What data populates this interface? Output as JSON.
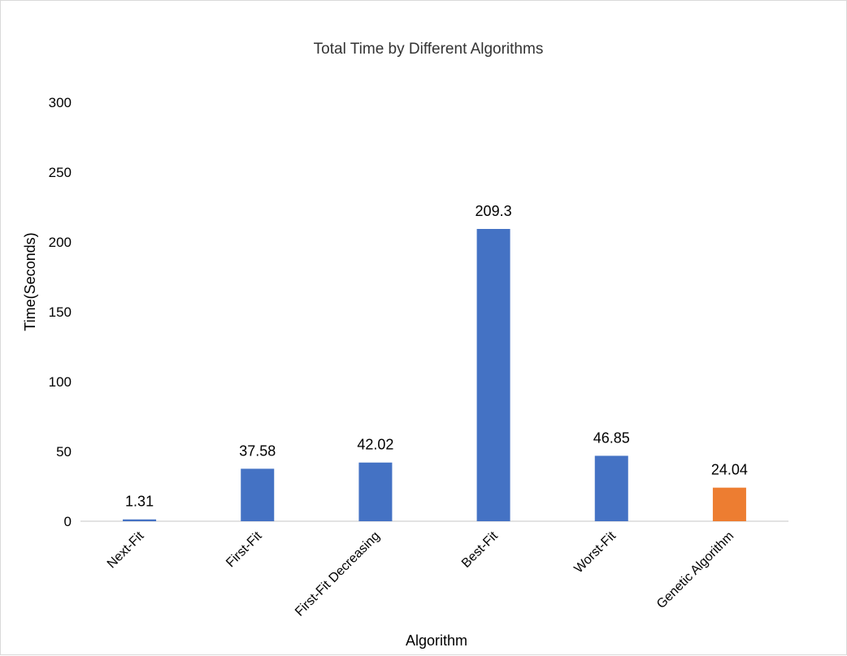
{
  "chart_data": {
    "type": "bar",
    "title": "Total Time by Different Algorithms",
    "xlabel": "Algorithm",
    "ylabel": "Time(Seconds)",
    "categories": [
      "Next-Fit",
      "First-Fit",
      "First-Fit Decreasing",
      "Best-Fit",
      "Worst-Fit",
      "Genetic Algorithm"
    ],
    "values": [
      1.31,
      37.58,
      42.02,
      209.3,
      46.85,
      24.04
    ],
    "data_labels": [
      "1.31",
      "37.58",
      "42.02",
      "209.3",
      "46.85",
      "24.04"
    ],
    "bar_colors": [
      "#4472c4",
      "#4472c4",
      "#4472c4",
      "#4472c4",
      "#4472c4",
      "#ed7d31"
    ],
    "ylim": [
      0,
      300
    ],
    "yticks": [
      0,
      50,
      100,
      150,
      200,
      250,
      300
    ],
    "grid": false,
    "legend": "none"
  }
}
